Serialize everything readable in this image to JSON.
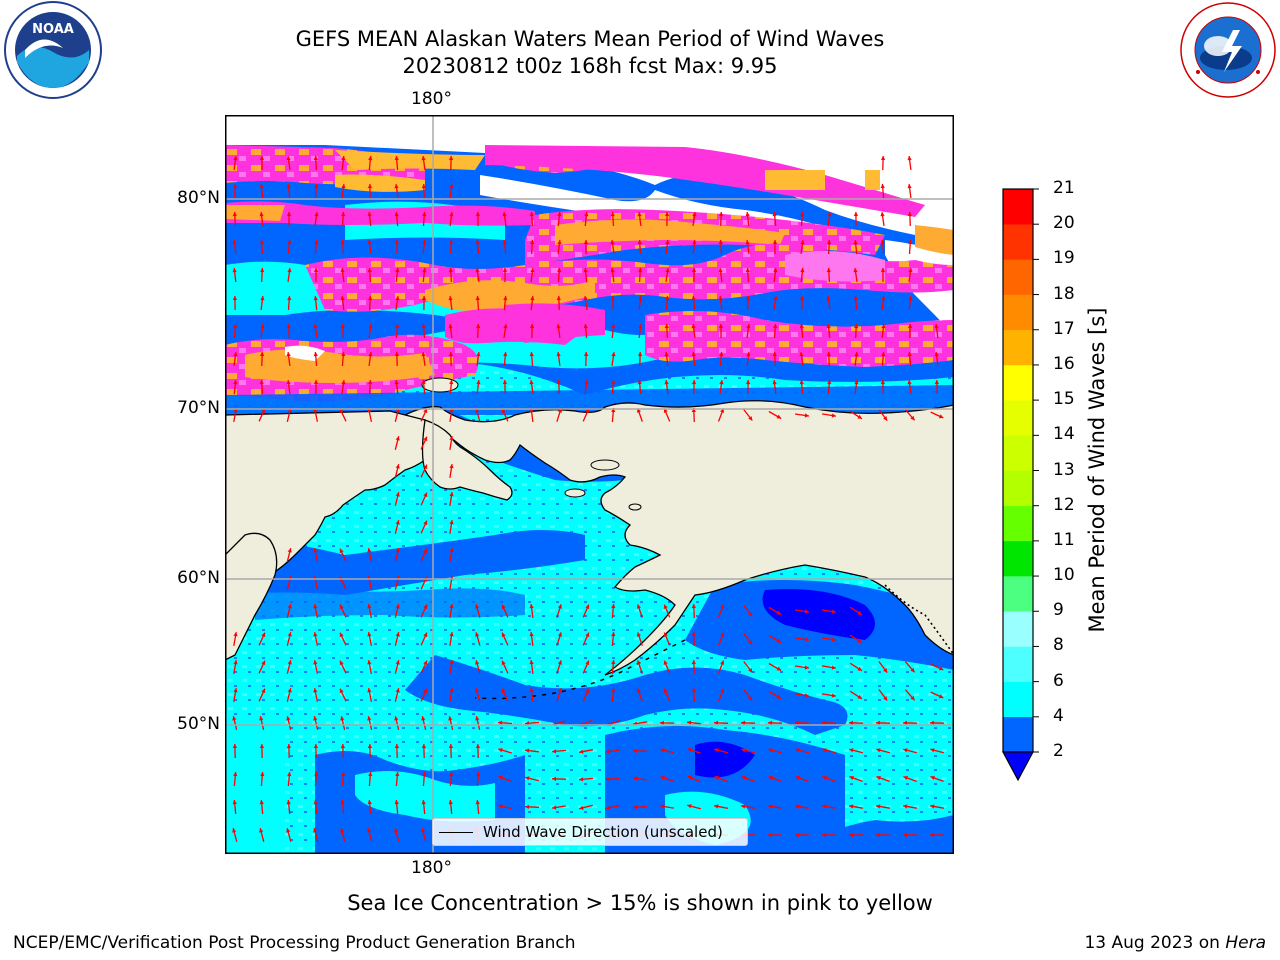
{
  "title": {
    "line1": "GEFS MEAN Alaskan Waters Mean Period of Wind Waves",
    "line2": "20230812 t00z 168h fcst   Max: 9.95"
  },
  "map": {
    "lon_label_top": "180°",
    "lon_label_bottom": "180°",
    "lat_labels": [
      "80°N",
      "70°N",
      "60°N",
      "50°N"
    ],
    "land_color": "#efeddc",
    "legend_label": "Wind Wave Direction (unscaled)",
    "arrow_color": "#ff0000"
  },
  "colorbar": {
    "label": "Mean Period of Wind Waves [s]",
    "ticks": [
      "2",
      "4",
      "6",
      "8",
      "9",
      "10",
      "11",
      "12",
      "13",
      "14",
      "15",
      "16",
      "17",
      "18",
      "19",
      "20",
      "21"
    ],
    "colors": [
      "#0066ff",
      "#00ffff",
      "#4dffff",
      "#99ffff",
      "#4dff80",
      "#00e600",
      "#66ff00",
      "#b3ff00",
      "#ccff00",
      "#e6ff00",
      "#ffff00",
      "#ffb300",
      "#ff8c00",
      "#ff6600",
      "#ff3300",
      "#ff0000"
    ],
    "extend_color": "#0000ff"
  },
  "footnote": "Sea Ice Concentration > 15% is shown in pink to yellow",
  "credit": "NCEP/EMC/Verification Post Processing Product Generation Branch",
  "date": {
    "text": "13 Aug 2023 on ",
    "host": "Hera"
  },
  "logos": {
    "noaa": {
      "name": "NOAA",
      "ring_text": "NATIONAL OCEANIC AND ATMOSPHERIC ADMINISTRATION · U.S. DEPARTMENT OF COMMERCE"
    },
    "nws": {
      "ring_text": "NATIONAL WEATHER SERVICE"
    }
  }
}
